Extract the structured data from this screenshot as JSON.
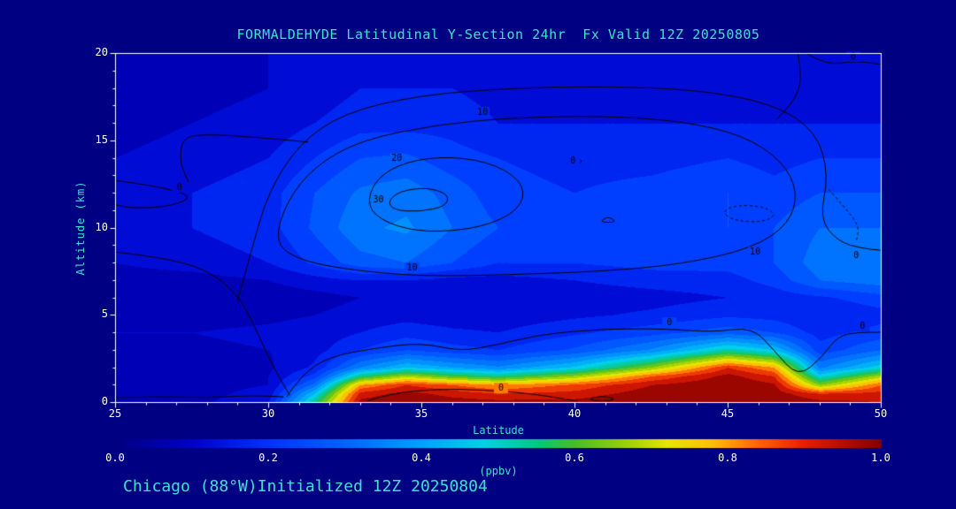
{
  "page": {
    "background": "#000082"
  },
  "chart_data": {
    "type": "heatmap",
    "title": "FORMALDEHYDE Latitudinal Y-Section 24hr  Fx Valid 12Z 20250805",
    "xlabel": "Latitude",
    "ylabel": "Altitude (km)",
    "footer": "Chicago (88°W)Initialized 12Z 20250804",
    "x_range": [
      25,
      50
    ],
    "y_range": [
      0,
      20
    ],
    "x_ticks": [
      25,
      30,
      35,
      40,
      45,
      50
    ],
    "y_ticks": [
      0,
      5,
      10,
      15,
      20
    ],
    "fill_levels_step": 0.05,
    "text_colors": {
      "accent": "#3FE0D0",
      "numbers": "#FFFFFF",
      "contour_label": "#000000",
      "frame": "#FFFFFF"
    },
    "colormap": [
      [
        0.0,
        "#000080"
      ],
      [
        0.1,
        "#0000C8"
      ],
      [
        0.2,
        "#0032FF"
      ],
      [
        0.3,
        "#0064FF"
      ],
      [
        0.4,
        "#00A0FF"
      ],
      [
        0.48,
        "#00D2E6"
      ],
      [
        0.55,
        "#00C882"
      ],
      [
        0.6,
        "#46BE28"
      ],
      [
        0.67,
        "#A0D200"
      ],
      [
        0.72,
        "#E6E600"
      ],
      [
        0.78,
        "#FFBE00"
      ],
      [
        0.84,
        "#FF6400"
      ],
      [
        0.9,
        "#E61E00"
      ],
      [
        1.0,
        "#820000"
      ]
    ],
    "colorbar": {
      "min": 0,
      "max": 1,
      "ticks": [
        "0.0",
        "0.2",
        "0.4",
        "0.6",
        "0.8",
        "1.0"
      ],
      "tick_values": [
        0,
        0.2,
        0.4,
        0.6,
        0.8,
        1.0
      ],
      "units_label": "(ppbv)"
    },
    "field": {
      "units": "ppbv",
      "lats": [
        25,
        27.5,
        30,
        31.5,
        33,
        34.5,
        36,
        37.5,
        40,
        42.5,
        45,
        46.5,
        48,
        50
      ],
      "alts": [
        0,
        0.5,
        1,
        1.5,
        2,
        3,
        4,
        5,
        6,
        7,
        8,
        10,
        12,
        14,
        16,
        18,
        20
      ],
      "values": [
        [
          0.08,
          0.08,
          0.15,
          0.55,
          0.97,
          1.0,
          0.98,
          0.97,
          0.97,
          1.0,
          1.0,
          1.0,
          0.97,
          0.95
        ],
        [
          0.08,
          0.08,
          0.12,
          0.45,
          0.92,
          0.97,
          0.93,
          0.9,
          0.92,
          0.98,
          1.0,
          0.98,
          0.9,
          0.92
        ],
        [
          0.08,
          0.08,
          0.1,
          0.32,
          0.8,
          0.9,
          0.85,
          0.8,
          0.86,
          0.95,
          1.0,
          0.96,
          0.65,
          0.85
        ],
        [
          0.08,
          0.08,
          0.1,
          0.22,
          0.55,
          0.68,
          0.6,
          0.55,
          0.66,
          0.85,
          0.97,
          0.9,
          0.48,
          0.68
        ],
        [
          0.08,
          0.08,
          0.09,
          0.16,
          0.35,
          0.45,
          0.4,
          0.36,
          0.46,
          0.65,
          0.9,
          0.8,
          0.34,
          0.48
        ],
        [
          0.09,
          0.09,
          0.1,
          0.13,
          0.2,
          0.25,
          0.22,
          0.2,
          0.26,
          0.36,
          0.52,
          0.45,
          0.22,
          0.3
        ],
        [
          0.1,
          0.1,
          0.11,
          0.12,
          0.15,
          0.18,
          0.16,
          0.15,
          0.19,
          0.23,
          0.28,
          0.25,
          0.18,
          0.22
        ],
        [
          0.08,
          0.08,
          0.09,
          0.1,
          0.12,
          0.13,
          0.12,
          0.12,
          0.14,
          0.16,
          0.19,
          0.18,
          0.15,
          0.18
        ],
        [
          0.06,
          0.06,
          0.07,
          0.08,
          0.1,
          0.1,
          0.1,
          0.11,
          0.12,
          0.13,
          0.15,
          0.17,
          0.19,
          0.23
        ],
        [
          0.08,
          0.08,
          0.1,
          0.13,
          0.15,
          0.15,
          0.13,
          0.13,
          0.15,
          0.17,
          0.18,
          0.22,
          0.3,
          0.33
        ],
        [
          0.1,
          0.12,
          0.15,
          0.21,
          0.28,
          0.3,
          0.25,
          0.2,
          0.2,
          0.22,
          0.22,
          0.25,
          0.33,
          0.35
        ],
        [
          0.12,
          0.15,
          0.18,
          0.26,
          0.34,
          0.36,
          0.3,
          0.25,
          0.22,
          0.25,
          0.25,
          0.25,
          0.3,
          0.3
        ],
        [
          0.12,
          0.15,
          0.18,
          0.25,
          0.31,
          0.33,
          0.28,
          0.22,
          0.2,
          0.22,
          0.25,
          0.22,
          0.25,
          0.25
        ],
        [
          0.1,
          0.12,
          0.15,
          0.2,
          0.25,
          0.26,
          0.22,
          0.2,
          0.18,
          0.18,
          0.2,
          0.18,
          0.2,
          0.2
        ],
        [
          0.08,
          0.1,
          0.12,
          0.15,
          0.18,
          0.18,
          0.18,
          0.15,
          0.15,
          0.15,
          0.15,
          0.15,
          0.15,
          0.15
        ],
        [
          0.08,
          0.08,
          0.1,
          0.12,
          0.15,
          0.15,
          0.15,
          0.13,
          0.13,
          0.13,
          0.12,
          0.12,
          0.12,
          0.12
        ],
        [
          0.06,
          0.08,
          0.1,
          0.12,
          0.13,
          0.13,
          0.13,
          0.12,
          0.12,
          0.12,
          0.1,
          0.1,
          0.1,
          0.1
        ]
      ]
    },
    "contours": [
      {
        "points": [
          [
            25,
            12.7
          ],
          [
            26.3,
            12.4
          ],
          [
            27.6,
            11.8
          ],
          [
            26.8,
            11.2
          ],
          [
            25.6,
            11.1
          ],
          [
            25,
            11.3
          ]
        ],
        "closed": false,
        "dashed": false,
        "labels": [
          {
            "text": "0",
            "pos": [
              27.1,
              12.3
            ]
          }
        ]
      },
      {
        "points": [
          [
            25,
            8.6
          ],
          [
            26.5,
            8.3
          ],
          [
            28,
            7.6
          ],
          [
            29,
            6.2
          ],
          [
            29.6,
            4.2
          ],
          [
            30.1,
            2.2
          ],
          [
            30.7,
            0.4
          ]
        ],
        "closed": false,
        "dashed": false,
        "labels": []
      },
      {
        "points": [
          [
            25,
            0.25
          ],
          [
            26.5,
            0.32
          ],
          [
            28,
            0.25
          ],
          [
            29.5,
            0.38
          ],
          [
            30.5,
            0.3
          ]
        ],
        "closed": false,
        "dashed": false,
        "labels": []
      },
      {
        "points": [
          [
            31.3,
            14.9
          ],
          [
            29.5,
            15.2
          ],
          [
            27.8,
            15.35
          ],
          [
            27.2,
            15.1
          ],
          [
            27.1,
            13.8
          ],
          [
            27.4,
            12.6
          ]
        ],
        "closed": false,
        "dashed": false,
        "labels": []
      },
      {
        "points": [
          [
            30.2,
            9.2
          ],
          [
            30.6,
            11.5
          ],
          [
            31.5,
            13.5
          ],
          [
            33,
            15
          ],
          [
            35.5,
            15.9
          ],
          [
            38,
            16.3
          ],
          [
            41,
            16.4
          ],
          [
            43.5,
            16.1
          ],
          [
            45.5,
            15.3
          ],
          [
            46.8,
            13.8
          ],
          [
            47.3,
            12
          ],
          [
            47,
            10.2
          ],
          [
            45.8,
            8.8
          ],
          [
            43.5,
            7.9
          ],
          [
            41,
            7.5
          ],
          [
            38,
            7.3
          ],
          [
            35,
            7.2
          ],
          [
            32.5,
            7.6
          ],
          [
            30.9,
            8.2
          ]
        ],
        "closed": true,
        "dashed": false,
        "labels": [
          {
            "text": "10",
            "pos": [
              34.7,
              7.7
            ]
          },
          {
            "text": "10",
            "pos": [
              45.9,
              8.6
            ]
          },
          {
            "text": "10",
            "pos": [
              37,
              16.6
            ]
          }
        ]
      },
      {
        "points": [
          [
            29,
            5.8
          ],
          [
            29.5,
            9
          ],
          [
            30,
            12
          ],
          [
            31,
            14.8
          ],
          [
            32.5,
            16.6
          ],
          [
            35,
            17.6
          ],
          [
            38,
            18
          ],
          [
            41,
            18.1
          ],
          [
            44,
            17.9
          ],
          [
            46.5,
            17.1
          ],
          [
            47.9,
            15.5
          ],
          [
            48.3,
            13
          ],
          [
            48,
            10.5
          ],
          [
            48.6,
            9.2
          ],
          [
            49.4,
            8.8
          ],
          [
            50,
            8.7
          ]
        ],
        "closed": false,
        "dashed": false,
        "labels": [
          {
            "text": "0",
            "pos": [
              49.2,
              8.4
            ]
          }
        ]
      },
      {
        "points": [
          [
            33.2,
            11.2
          ],
          [
            33.5,
            12.8
          ],
          [
            34.5,
            13.8
          ],
          [
            36,
            14.1
          ],
          [
            37.5,
            13.6
          ],
          [
            38.4,
            12.4
          ],
          [
            38.2,
            11
          ],
          [
            37,
            10
          ],
          [
            35.2,
            9.7
          ],
          [
            33.9,
            10.2
          ]
        ],
        "closed": true,
        "dashed": false,
        "labels": [
          {
            "text": "20",
            "pos": [
              34.2,
              13.95
            ]
          }
        ]
      },
      {
        "points": [
          [
            33.9,
            11.5
          ],
          [
            34.3,
            12.1
          ],
          [
            35.2,
            12.3
          ],
          [
            35.9,
            11.9
          ],
          [
            35.8,
            11.2
          ],
          [
            34.9,
            10.9
          ],
          [
            34.1,
            11
          ]
        ],
        "closed": true,
        "dashed": false,
        "labels": [
          {
            "text": "30",
            "pos": [
              33.6,
              11.55
            ]
          }
        ]
      },
      {
        "points": [
          [
            39.8,
            13.8
          ],
          [
            40,
            14.05
          ],
          [
            40.3,
            13.8
          ],
          [
            40,
            13.55
          ]
        ],
        "closed": true,
        "dashed": false,
        "labels": [
          {
            "text": "0",
            "pos": [
              39.95,
              13.8
            ]
          }
        ]
      },
      {
        "points": [
          [
            40.8,
            10.3
          ],
          [
            41.1,
            10.65
          ],
          [
            41.4,
            10.3
          ]
        ],
        "closed": true,
        "dashed": false,
        "labels": []
      },
      {
        "points": [
          [
            44.8,
            10.9
          ],
          [
            45.3,
            11.3
          ],
          [
            46.2,
            11.2
          ],
          [
            46.6,
            10.7
          ],
          [
            46.1,
            10.3
          ],
          [
            45.2,
            10.4
          ]
        ],
        "closed": true,
        "dashed": true,
        "labels": []
      },
      {
        "points": [
          [
            48.3,
            12.2
          ],
          [
            48.8,
            11.2
          ],
          [
            49.3,
            10.1
          ],
          [
            49.2,
            9.2
          ]
        ],
        "closed": false,
        "dashed": true,
        "labels": []
      },
      {
        "points": [
          [
            30.6,
            0.3
          ],
          [
            31.1,
            1.6
          ],
          [
            32,
            2.6
          ],
          [
            33.5,
            3.1
          ],
          [
            35,
            3.4
          ],
          [
            36.3,
            2.9
          ],
          [
            37.5,
            3.3
          ],
          [
            39,
            3.9
          ],
          [
            41,
            4.2
          ],
          [
            43,
            4.2
          ],
          [
            44.5,
            4.0
          ],
          [
            45.8,
            4.3
          ],
          [
            46.5,
            3.0
          ],
          [
            47.3,
            1.4
          ],
          [
            48.1,
            2.6
          ],
          [
            48.6,
            3.8
          ],
          [
            49.3,
            4.0
          ],
          [
            50,
            4.0
          ]
        ],
        "closed": false,
        "dashed": false,
        "labels": [
          {
            "text": "0",
            "pos": [
              43.1,
              4.55
            ]
          },
          {
            "text": "0",
            "pos": [
              49.4,
              4.35
            ]
          }
        ]
      },
      {
        "points": [
          [
            33.2,
            0.05
          ],
          [
            34,
            0.5
          ],
          [
            35.5,
            0.75
          ],
          [
            37,
            0.7
          ],
          [
            38.5,
            0.5
          ],
          [
            39.6,
            0.2
          ],
          [
            40.1,
            0.05
          ]
        ],
        "closed": false,
        "dashed": false,
        "labels": [
          {
            "text": "0",
            "pos": [
              37.6,
              0.8
            ]
          }
        ]
      },
      {
        "points": [
          [
            40.4,
            0.15
          ],
          [
            40.9,
            0.38
          ],
          [
            41.4,
            0.15
          ],
          [
            40.9,
            0.05
          ]
        ],
        "closed": true,
        "dashed": false,
        "labels": []
      },
      {
        "points": [
          [
            47.6,
            19.95
          ],
          [
            48.2,
            19.3
          ],
          [
            49.2,
            19.55
          ],
          [
            50,
            19.35
          ]
        ],
        "closed": false,
        "dashed": false,
        "labels": [
          {
            "text": "0",
            "pos": [
              49.1,
              19.8
            ]
          }
        ]
      },
      {
        "points": [
          [
            47.3,
            19.95
          ],
          [
            47.45,
            18.5
          ],
          [
            47.15,
            17.2
          ],
          [
            46.6,
            16.2
          ]
        ],
        "closed": false,
        "dashed": false,
        "labels": []
      }
    ]
  }
}
